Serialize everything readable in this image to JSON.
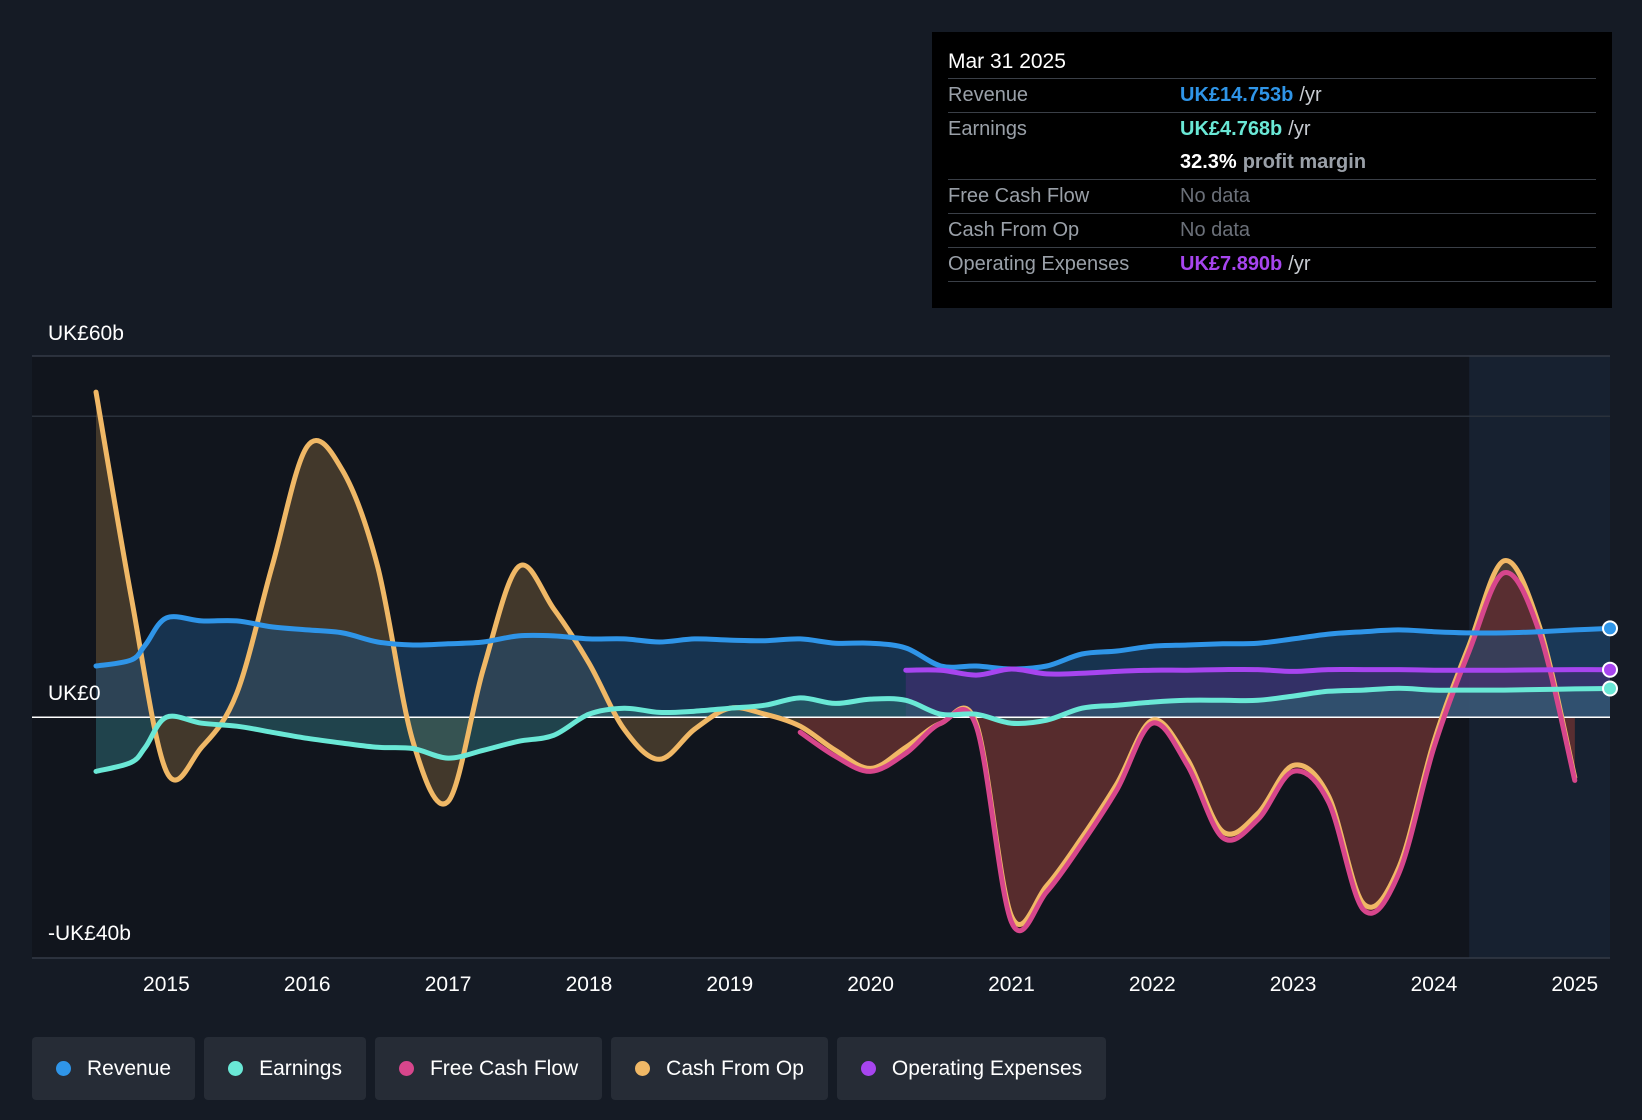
{
  "chart_data": {
    "type": "line",
    "y_axis": {
      "top_label": "UK£60b",
      "zero_label": "UK£0",
      "bottom_label": "-UK£40b",
      "ylim": [
        -40,
        60
      ]
    },
    "x_ticks": [
      "2015",
      "2016",
      "2017",
      "2018",
      "2019",
      "2020",
      "2021",
      "2022",
      "2023",
      "2024",
      "2025"
    ],
    "xlim": [
      2014.5,
      2025.25
    ],
    "forecast_start": 2024.25,
    "series": [
      {
        "name": "Revenue",
        "color": "#2f95e8",
        "fill": "#1e4c78",
        "points": [
          [
            2014.5,
            8.5
          ],
          [
            2014.75,
            9.5
          ],
          [
            2014.85,
            12
          ],
          [
            2015,
            16.5
          ],
          [
            2015.25,
            16
          ],
          [
            2015.5,
            16
          ],
          [
            2015.75,
            15
          ],
          [
            2016,
            14.5
          ],
          [
            2016.25,
            14
          ],
          [
            2016.5,
            12.5
          ],
          [
            2016.75,
            12
          ],
          [
            2017,
            12.2
          ],
          [
            2017.25,
            12.5
          ],
          [
            2017.5,
            13.5
          ],
          [
            2017.75,
            13.5
          ],
          [
            2018,
            13
          ],
          [
            2018.25,
            13
          ],
          [
            2018.5,
            12.5
          ],
          [
            2018.75,
            13
          ],
          [
            2019,
            12.8
          ],
          [
            2019.25,
            12.7
          ],
          [
            2019.5,
            13
          ],
          [
            2019.75,
            12.3
          ],
          [
            2020,
            12.3
          ],
          [
            2020.25,
            11.5
          ],
          [
            2020.5,
            8.5
          ],
          [
            2020.75,
            8.5
          ],
          [
            2021,
            8
          ],
          [
            2021.25,
            8.5
          ],
          [
            2021.5,
            10.5
          ],
          [
            2021.75,
            11
          ],
          [
            2022,
            11.8
          ],
          [
            2022.25,
            12
          ],
          [
            2022.5,
            12.2
          ],
          [
            2022.75,
            12.3
          ],
          [
            2023,
            13
          ],
          [
            2023.25,
            13.8
          ],
          [
            2023.5,
            14.2
          ],
          [
            2023.75,
            14.5
          ],
          [
            2024,
            14.2
          ],
          [
            2024.25,
            14
          ],
          [
            2024.5,
            14
          ],
          [
            2024.75,
            14.2
          ],
          [
            2025,
            14.5
          ],
          [
            2025.25,
            14.75
          ]
        ]
      },
      {
        "name": "Earnings",
        "color": "#6ae8d6",
        "fill": "#2d6a72",
        "points": [
          [
            2014.5,
            -9
          ],
          [
            2014.75,
            -7.5
          ],
          [
            2014.85,
            -5
          ],
          [
            2015,
            0
          ],
          [
            2015.25,
            -1
          ],
          [
            2015.5,
            -1.5
          ],
          [
            2015.75,
            -2.5
          ],
          [
            2016,
            -3.5
          ],
          [
            2016.25,
            -4.3
          ],
          [
            2016.5,
            -5
          ],
          [
            2016.75,
            -5.2
          ],
          [
            2017,
            -6.8
          ],
          [
            2017.25,
            -5.5
          ],
          [
            2017.5,
            -4
          ],
          [
            2017.75,
            -3
          ],
          [
            2018,
            0.5
          ],
          [
            2018.25,
            1.5
          ],
          [
            2018.5,
            0.8
          ],
          [
            2018.75,
            1
          ],
          [
            2019,
            1.5
          ],
          [
            2019.25,
            2
          ],
          [
            2019.5,
            3.2
          ],
          [
            2019.75,
            2.3
          ],
          [
            2020,
            3
          ],
          [
            2020.25,
            2.8
          ],
          [
            2020.5,
            0.5
          ],
          [
            2020.75,
            0.5
          ],
          [
            2021,
            -1
          ],
          [
            2021.25,
            -0.5
          ],
          [
            2021.5,
            1.5
          ],
          [
            2021.75,
            2
          ],
          [
            2022,
            2.5
          ],
          [
            2022.25,
            2.8
          ],
          [
            2022.5,
            2.8
          ],
          [
            2022.75,
            2.8
          ],
          [
            2023,
            3.5
          ],
          [
            2023.25,
            4.3
          ],
          [
            2023.5,
            4.5
          ],
          [
            2023.75,
            4.8
          ],
          [
            2024,
            4.5
          ],
          [
            2024.25,
            4.5
          ],
          [
            2024.5,
            4.5
          ],
          [
            2024.75,
            4.6
          ],
          [
            2025,
            4.7
          ],
          [
            2025.25,
            4.77
          ]
        ]
      },
      {
        "name": "Free Cash Flow",
        "color": "#d7468c",
        "fill": "#6a2230",
        "points": [
          [
            2019.5,
            -2.5
          ],
          [
            2019.75,
            -6.5
          ],
          [
            2020,
            -9
          ],
          [
            2020.25,
            -6
          ],
          [
            2020.5,
            -1
          ],
          [
            2020.75,
            -1.5
          ],
          [
            2021,
            -34
          ],
          [
            2021.25,
            -29
          ],
          [
            2021.5,
            -21
          ],
          [
            2021.75,
            -12
          ],
          [
            2022,
            -1
          ],
          [
            2022.25,
            -8
          ],
          [
            2022.5,
            -20
          ],
          [
            2022.75,
            -17
          ],
          [
            2023,
            -9
          ],
          [
            2023.25,
            -14
          ],
          [
            2023.5,
            -32
          ],
          [
            2023.75,
            -26
          ],
          [
            2024,
            -5
          ],
          [
            2024.25,
            11
          ],
          [
            2024.5,
            24
          ],
          [
            2024.75,
            14
          ],
          [
            2025,
            -10.5
          ]
        ]
      },
      {
        "name": "Cash From Op",
        "color": "#f0b866",
        "fill": "#6b5636",
        "points": [
          [
            2014.5,
            54
          ],
          [
            2014.75,
            20
          ],
          [
            2015,
            -9
          ],
          [
            2015.25,
            -5
          ],
          [
            2015.5,
            4
          ],
          [
            2015.75,
            25
          ],
          [
            2016,
            45
          ],
          [
            2016.25,
            41
          ],
          [
            2016.5,
            25
          ],
          [
            2016.75,
            -4
          ],
          [
            2017,
            -14
          ],
          [
            2017.25,
            8
          ],
          [
            2017.5,
            25
          ],
          [
            2017.75,
            18
          ],
          [
            2018,
            9
          ],
          [
            2018.25,
            -2
          ],
          [
            2018.5,
            -7
          ],
          [
            2018.75,
            -2
          ],
          [
            2019,
            1.5
          ],
          [
            2019.25,
            0.5
          ],
          [
            2019.5,
            -1.5
          ],
          [
            2019.75,
            -5.5
          ],
          [
            2020,
            -8.5
          ],
          [
            2020.25,
            -5
          ],
          [
            2020.5,
            -1
          ],
          [
            2020.75,
            -1
          ],
          [
            2021,
            -33
          ],
          [
            2021.25,
            -28
          ],
          [
            2021.5,
            -20
          ],
          [
            2021.75,
            -11
          ],
          [
            2022,
            -0.5
          ],
          [
            2022.25,
            -7
          ],
          [
            2022.5,
            -19
          ],
          [
            2022.75,
            -16
          ],
          [
            2023,
            -8
          ],
          [
            2023.25,
            -13
          ],
          [
            2023.5,
            -31
          ],
          [
            2023.75,
            -25
          ],
          [
            2024,
            -4
          ],
          [
            2024.25,
            12
          ],
          [
            2024.5,
            26
          ],
          [
            2024.75,
            15
          ],
          [
            2025,
            -10
          ]
        ]
      },
      {
        "name": "Operating Expenses",
        "color": "#a745ef",
        "fill": "#4a2d7a",
        "points": [
          [
            2020.25,
            7.8
          ],
          [
            2020.5,
            7.8
          ],
          [
            2020.75,
            7
          ],
          [
            2021,
            8
          ],
          [
            2021.25,
            7.2
          ],
          [
            2021.5,
            7.3
          ],
          [
            2021.75,
            7.6
          ],
          [
            2022,
            7.8
          ],
          [
            2022.25,
            7.8
          ],
          [
            2022.5,
            7.9
          ],
          [
            2022.75,
            7.9
          ],
          [
            2023,
            7.6
          ],
          [
            2023.25,
            7.9
          ],
          [
            2023.5,
            7.9
          ],
          [
            2023.75,
            7.9
          ],
          [
            2024,
            7.8
          ],
          [
            2024.25,
            7.8
          ],
          [
            2024.5,
            7.8
          ],
          [
            2024.75,
            7.85
          ],
          [
            2025,
            7.9
          ],
          [
            2025.25,
            7.89
          ]
        ]
      }
    ]
  },
  "tooltip": {
    "date": "Mar 31 2025",
    "revenue": {
      "label": "Revenue",
      "value": "UK£14.753b",
      "unit": "/yr"
    },
    "earnings": {
      "label": "Earnings",
      "value": "UK£4.768b",
      "unit": "/yr"
    },
    "margin": {
      "value": "32.3%",
      "text": "profit margin"
    },
    "fcf": {
      "label": "Free Cash Flow",
      "value": "No data"
    },
    "cfo": {
      "label": "Cash From Op",
      "value": "No data"
    },
    "opex": {
      "label": "Operating Expenses",
      "value": "UK£7.890b",
      "unit": "/yr"
    }
  },
  "legend": [
    {
      "name": "Revenue",
      "color": "#2f95e8"
    },
    {
      "name": "Earnings",
      "color": "#6ae8d6"
    },
    {
      "name": "Free Cash Flow",
      "color": "#d7468c"
    },
    {
      "name": "Cash From Op",
      "color": "#f0b866"
    },
    {
      "name": "Operating Expenses",
      "color": "#a745ef"
    }
  ]
}
